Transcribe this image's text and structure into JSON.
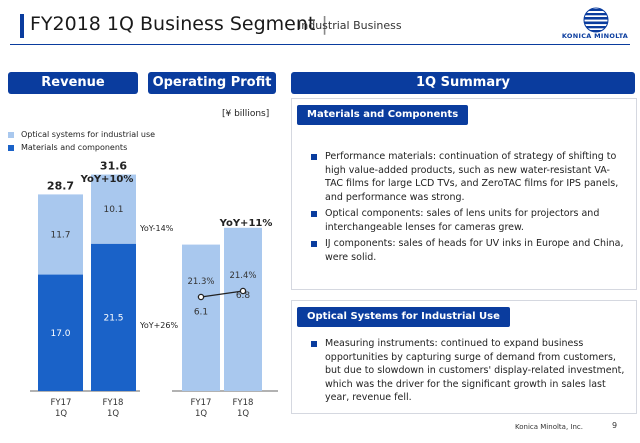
{
  "header": {
    "title": "FY2018 1Q Business Segment",
    "separator": "|",
    "subtitle": "Industrial Business",
    "logo_text": "KONICA MINOLTA"
  },
  "tabs": {
    "revenue": "Revenue",
    "operating_profit": "Operating Profit",
    "summary": "1Q Summary"
  },
  "units": "[¥ billions]",
  "legend": [
    {
      "label": "Optical systems for industrial use",
      "color": "#a9c8ee"
    },
    {
      "label": "Materials and components",
      "color": "#1a62c8"
    }
  ],
  "chart_data": [
    {
      "type": "bar",
      "categories": [
        "FY17\n1Q",
        "FY18\n1Q"
      ],
      "series": [
        {
          "name": "Materials and components",
          "values": [
            17.0,
            21.5
          ]
        },
        {
          "name": "Optical systems for industrial use",
          "values": [
            11.7,
            10.1
          ]
        }
      ],
      "totals": [
        "28.7",
        "31.6"
      ],
      "value_labels": {
        "materials": [
          "17.0",
          "21.5"
        ],
        "optical": [
          "11.7",
          "10.1"
        ]
      },
      "annotations": {
        "total_growth": "YoY+10%",
        "optical_growth": "YoY-14%",
        "materials_growth": "YoY+26%"
      },
      "category_lines": [
        [
          "FY17",
          "1Q"
        ],
        [
          "FY18",
          "1Q"
        ]
      ]
    },
    {
      "type": "bar",
      "categories": [
        "FY17\n1Q",
        "FY18\n1Q"
      ],
      "values": [
        6.1,
        6.8
      ],
      "value_labels": [
        "6.1",
        "6.8"
      ],
      "margin_line": {
        "values": [
          21.3,
          21.4
        ],
        "labels": [
          "21.3%",
          "21.4%"
        ]
      },
      "annotations": {
        "growth": "YoY+11%"
      },
      "category_lines": [
        [
          "FY17",
          "1Q"
        ],
        [
          "FY18",
          "1Q"
        ]
      ]
    }
  ],
  "summary": {
    "materials": {
      "label": "Materials and Components",
      "bullets": [
        "Performance materials: continuation of strategy of shifting to high value-added products, such as new water-resistant VA-TAC films for large LCD TVs, and ZeroTAC films for IPS panels, and performance was strong.",
        "Optical components: sales of lens units for projectors and interchangeable lenses for cameras grew.",
        "IJ components: sales of  heads for UV inks in Europe and China, were solid."
      ]
    },
    "optical": {
      "label": "Optical Systems for Industrial Use",
      "bullets": [
        "Measuring instruments: continued to expand business opportunities by capturing surge of demand from customers, but due to slowdown in customers' display-related investment, which was the driver for the significant growth in sales last year, revenue fell."
      ]
    }
  },
  "footer": {
    "company": "Konica Minolta, Inc.",
    "page": "9"
  }
}
